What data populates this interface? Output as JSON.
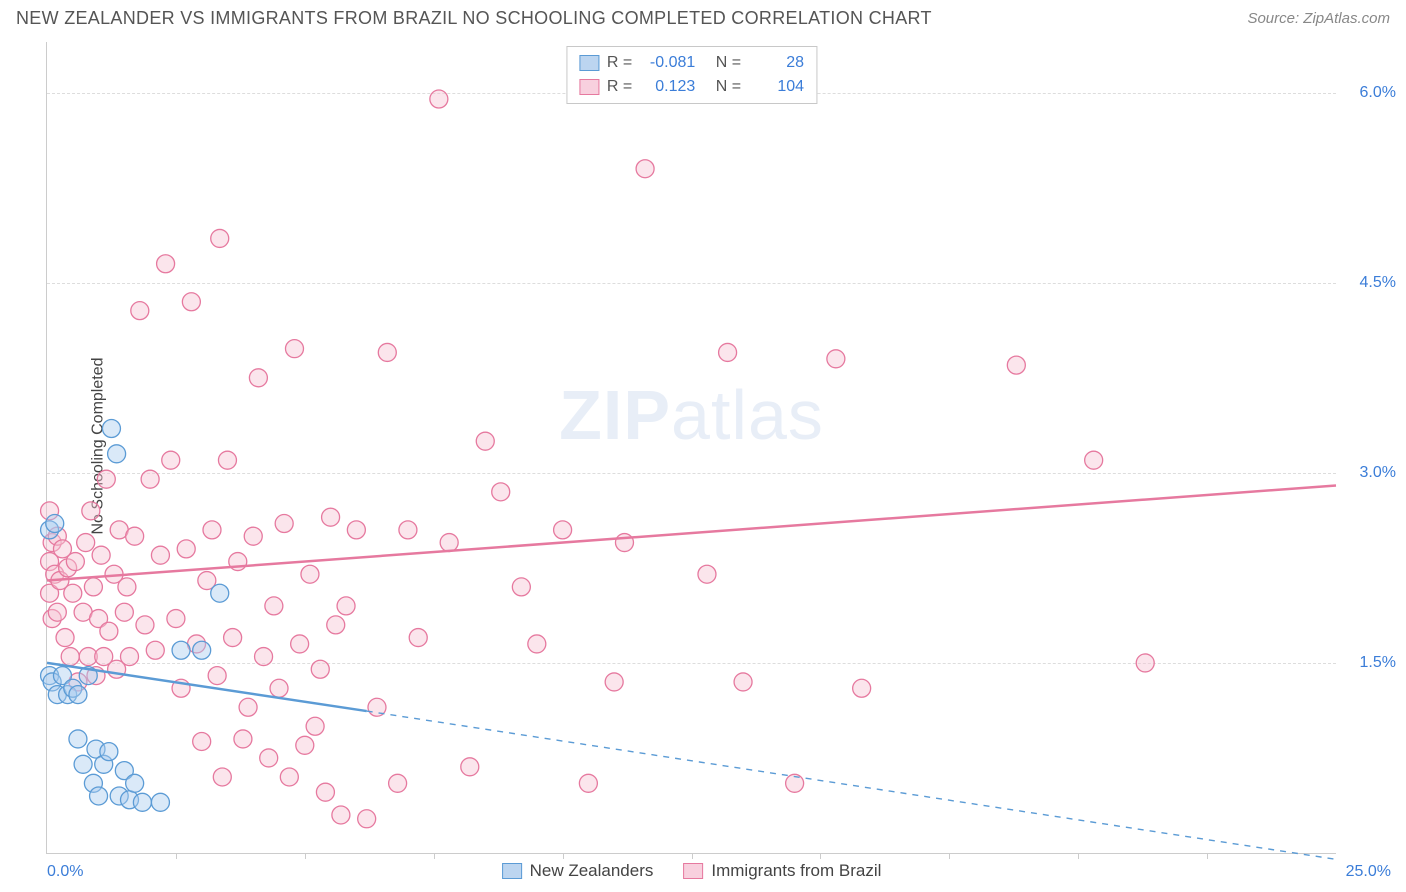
{
  "header": {
    "title": "NEW ZEALANDER VS IMMIGRANTS FROM BRAZIL NO SCHOOLING COMPLETED CORRELATION CHART",
    "source": "Source: ZipAtlas.com"
  },
  "chart": {
    "type": "scatter",
    "y_axis_label": "No Schooling Completed",
    "watermark_a": "ZIP",
    "watermark_b": "atlas",
    "xlim": [
      0,
      25
    ],
    "ylim": [
      0,
      6.4
    ],
    "x_left_tick": "0.0%",
    "x_right_tick": "25.0%",
    "x_ticks_minor": [
      2.5,
      5,
      7.5,
      10,
      12.5,
      15,
      17.5,
      20,
      22.5
    ],
    "y_gridlines": [
      1.5,
      3.0,
      4.5,
      6.0
    ],
    "y_right_labels": [
      "1.5%",
      "3.0%",
      "4.5%",
      "6.0%"
    ],
    "background_color": "#ffffff",
    "grid_dash_color": "#dddddd",
    "axis_color": "#cccccc",
    "label_color": "#3b7dd8",
    "y_axis_title_color": "#444444",
    "title_color": "#555555",
    "title_fontsize": 18,
    "axis_label_fontsize": 16,
    "marker_radius": 9,
    "marker_stroke_width": 1.3,
    "marker_fill_opacity": 0.18,
    "trend_line_width": 2.5,
    "series": [
      {
        "id": "nz",
        "name": "New Zealanders",
        "color_stroke": "#5b9bd5",
        "color_fill": "#a9cbef",
        "swatch_fill": "#bcd5f0",
        "swatch_border": "#5b9bd5",
        "R": "-0.081",
        "N": "28",
        "trend": {
          "x1": 0,
          "y1": 1.5,
          "x2": 6.2,
          "y2": 1.12,
          "dash_x2": 25,
          "dash_y2": -0.05
        },
        "points": [
          [
            0.05,
            1.4
          ],
          [
            0.05,
            2.55
          ],
          [
            0.1,
            1.35
          ],
          [
            0.15,
            2.6
          ],
          [
            0.2,
            1.25
          ],
          [
            0.3,
            1.4
          ],
          [
            0.4,
            1.25
          ],
          [
            0.5,
            1.3
          ],
          [
            0.6,
            0.9
          ],
          [
            0.6,
            1.25
          ],
          [
            0.7,
            0.7
          ],
          [
            0.8,
            1.4
          ],
          [
            0.9,
            0.55
          ],
          [
            0.95,
            0.82
          ],
          [
            1.0,
            0.45
          ],
          [
            1.1,
            0.7
          ],
          [
            1.2,
            0.8
          ],
          [
            1.25,
            3.35
          ],
          [
            1.35,
            3.15
          ],
          [
            1.4,
            0.45
          ],
          [
            1.5,
            0.65
          ],
          [
            1.6,
            0.42
          ],
          [
            1.7,
            0.55
          ],
          [
            1.85,
            0.4
          ],
          [
            2.2,
            0.4
          ],
          [
            2.6,
            1.6
          ],
          [
            3.0,
            1.6
          ],
          [
            3.35,
            2.05
          ]
        ]
      },
      {
        "id": "br",
        "name": "Immigrants from Brazil",
        "color_stroke": "#e6799f",
        "color_fill": "#f5c2d4",
        "swatch_fill": "#f8d0de",
        "swatch_border": "#e6799f",
        "R": "0.123",
        "N": "104",
        "trend": {
          "x1": 0,
          "y1": 2.15,
          "x2": 25,
          "y2": 2.9
        },
        "points": [
          [
            0.05,
            2.3
          ],
          [
            0.05,
            2.05
          ],
          [
            0.1,
            2.45
          ],
          [
            0.1,
            1.85
          ],
          [
            0.15,
            2.2
          ],
          [
            0.2,
            2.5
          ],
          [
            0.2,
            1.9
          ],
          [
            0.25,
            2.15
          ],
          [
            0.3,
            2.4
          ],
          [
            0.35,
            1.7
          ],
          [
            0.4,
            2.25
          ],
          [
            0.45,
            1.55
          ],
          [
            0.5,
            2.05
          ],
          [
            0.55,
            2.3
          ],
          [
            0.6,
            1.35
          ],
          [
            0.7,
            1.9
          ],
          [
            0.75,
            2.45
          ],
          [
            0.8,
            1.55
          ],
          [
            0.85,
            2.7
          ],
          [
            0.9,
            2.1
          ],
          [
            0.95,
            1.4
          ],
          [
            1.0,
            1.85
          ],
          [
            1.05,
            2.35
          ],
          [
            1.1,
            1.55
          ],
          [
            1.15,
            2.95
          ],
          [
            1.2,
            1.75
          ],
          [
            1.3,
            2.2
          ],
          [
            1.35,
            1.45
          ],
          [
            1.4,
            2.55
          ],
          [
            1.5,
            1.9
          ],
          [
            1.6,
            1.55
          ],
          [
            1.7,
            2.5
          ],
          [
            1.8,
            4.28
          ],
          [
            1.9,
            1.8
          ],
          [
            2.0,
            2.95
          ],
          [
            2.1,
            1.6
          ],
          [
            2.2,
            2.35
          ],
          [
            2.3,
            4.65
          ],
          [
            2.4,
            3.1
          ],
          [
            2.5,
            1.85
          ],
          [
            2.6,
            1.3
          ],
          [
            2.7,
            2.4
          ],
          [
            2.8,
            4.35
          ],
          [
            2.9,
            1.65
          ],
          [
            3.0,
            0.88
          ],
          [
            3.1,
            2.15
          ],
          [
            3.2,
            2.55
          ],
          [
            3.3,
            1.4
          ],
          [
            3.35,
            4.85
          ],
          [
            3.4,
            0.6
          ],
          [
            3.5,
            3.1
          ],
          [
            3.6,
            1.7
          ],
          [
            3.7,
            2.3
          ],
          [
            3.8,
            0.9
          ],
          [
            3.9,
            1.15
          ],
          [
            4.0,
            2.5
          ],
          [
            4.1,
            3.75
          ],
          [
            4.2,
            1.55
          ],
          [
            4.3,
            0.75
          ],
          [
            4.4,
            1.95
          ],
          [
            4.5,
            1.3
          ],
          [
            4.6,
            2.6
          ],
          [
            4.7,
            0.6
          ],
          [
            4.8,
            3.98
          ],
          [
            4.9,
            1.65
          ],
          [
            5.0,
            0.85
          ],
          [
            5.1,
            2.2
          ],
          [
            5.2,
            1.0
          ],
          [
            5.3,
            1.45
          ],
          [
            5.4,
            0.48
          ],
          [
            5.5,
            2.65
          ],
          [
            5.6,
            1.8
          ],
          [
            5.7,
            0.3
          ],
          [
            5.8,
            1.95
          ],
          [
            6.0,
            2.55
          ],
          [
            6.2,
            0.27
          ],
          [
            6.4,
            1.15
          ],
          [
            6.6,
            3.95
          ],
          [
            6.8,
            0.55
          ],
          [
            7.0,
            2.55
          ],
          [
            7.2,
            1.7
          ],
          [
            7.6,
            5.95
          ],
          [
            7.8,
            2.45
          ],
          [
            8.2,
            0.68
          ],
          [
            8.5,
            3.25
          ],
          [
            8.8,
            2.85
          ],
          [
            9.2,
            2.1
          ],
          [
            9.5,
            1.65
          ],
          [
            10.0,
            2.55
          ],
          [
            10.5,
            0.55
          ],
          [
            11.0,
            1.35
          ],
          [
            11.2,
            2.45
          ],
          [
            11.6,
            5.4
          ],
          [
            12.8,
            2.2
          ],
          [
            13.2,
            3.95
          ],
          [
            13.5,
            1.35
          ],
          [
            14.5,
            0.55
          ],
          [
            15.3,
            3.9
          ],
          [
            15.8,
            1.3
          ],
          [
            18.8,
            3.85
          ],
          [
            20.3,
            3.1
          ],
          [
            21.3,
            1.5
          ],
          [
            0.05,
            2.7
          ],
          [
            1.55,
            2.1
          ]
        ]
      }
    ],
    "legend_top": {
      "R_label": "R =",
      "N_label": "N ="
    },
    "legend_bottom": {}
  }
}
